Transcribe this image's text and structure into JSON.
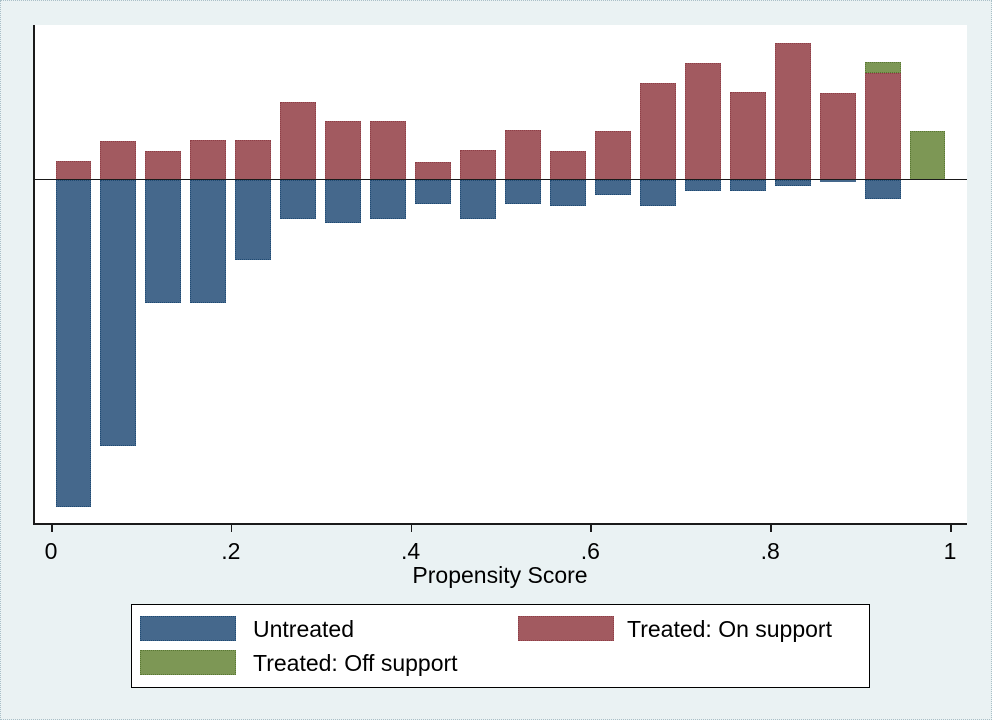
{
  "figure": {
    "background_color": "#EAF2F3",
    "plot_background_color": "#FFFFFF",
    "axis_color": "#1A1A1A"
  },
  "x_axis": {
    "title": "Propensity Score",
    "tick_values": [
      0,
      0.2,
      0.4,
      0.6,
      0.8,
      1
    ],
    "tick_labels": [
      "0",
      ".2",
      ".4",
      ".6",
      ".8",
      "1"
    ]
  },
  "legend": {
    "entries": [
      {
        "label": "Untreated",
        "fill": "#45688C",
        "border": "#1E4A73"
      },
      {
        "label": "Treated: On support",
        "fill": "#A25A60",
        "border": "#8E3E46"
      },
      {
        "label": "Treated: Off support",
        "fill": "#7D9755",
        "border": "#587732"
      }
    ]
  },
  "chart_data": {
    "type": "bar",
    "subtype": "propensity-score overlap histogram (treated plotted upward, untreated plotted downward from a common zero line)",
    "title": "",
    "xlabel": "Propensity Score",
    "ylabel": "",
    "x_range": [
      0,
      1
    ],
    "bin_width": 0.05,
    "grid": false,
    "legend_position": "bottom",
    "y_axis_note": "y axis is unlabeled in the source graph; bar magnitudes below are relative heights measured in screen pixels (zero line = 0)",
    "series": [
      {
        "id": "treated_on",
        "name": "Treated: On support",
        "direction": "up",
        "fill": "#A25A60",
        "border": "#8E3E46"
      },
      {
        "id": "treated_off",
        "name": "Treated: Off support",
        "direction": "up",
        "fill": "#7D9755",
        "border": "#587732"
      },
      {
        "id": "untreated",
        "name": "Untreated",
        "direction": "down",
        "fill": "#45688C",
        "border": "#1E4A73"
      }
    ],
    "bins": [
      {
        "x0": 0.0,
        "x1": 0.05,
        "treated_on": 19,
        "treated_off": 0,
        "untreated": 327
      },
      {
        "x0": 0.05,
        "x1": 0.1,
        "treated_on": 39,
        "treated_off": 0,
        "untreated": 266
      },
      {
        "x0": 0.1,
        "x1": 0.15,
        "treated_on": 29,
        "treated_off": 0,
        "untreated": 123
      },
      {
        "x0": 0.15,
        "x1": 0.2,
        "treated_on": 39.5,
        "treated_off": 0,
        "untreated": 123
      },
      {
        "x0": 0.2,
        "x1": 0.25,
        "treated_on": 39.5,
        "treated_off": 0,
        "untreated": 80
      },
      {
        "x0": 0.25,
        "x1": 0.3,
        "treated_on": 78,
        "treated_off": 0,
        "untreated": 39
      },
      {
        "x0": 0.3,
        "x1": 0.35,
        "treated_on": 58.5,
        "treated_off": 0,
        "untreated": 43.5
      },
      {
        "x0": 0.35,
        "x1": 0.4,
        "treated_on": 59,
        "treated_off": 0,
        "untreated": 39
      },
      {
        "x0": 0.4,
        "x1": 0.45,
        "treated_on": 18,
        "treated_off": 0,
        "untreated": 24
      },
      {
        "x0": 0.45,
        "x1": 0.5,
        "treated_on": 30,
        "treated_off": 0,
        "untreated": 39
      },
      {
        "x0": 0.5,
        "x1": 0.55,
        "treated_on": 50,
        "treated_off": 0,
        "untreated": 24.5
      },
      {
        "x0": 0.55,
        "x1": 0.6,
        "treated_on": 29,
        "treated_off": 0,
        "untreated": 26.5
      },
      {
        "x0": 0.6,
        "x1": 0.65,
        "treated_on": 49,
        "treated_off": 0,
        "untreated": 15
      },
      {
        "x0": 0.65,
        "x1": 0.7,
        "treated_on": 97,
        "treated_off": 0,
        "untreated": 26.5
      },
      {
        "x0": 0.7,
        "x1": 0.75,
        "treated_on": 117,
        "treated_off": 0,
        "untreated": 11
      },
      {
        "x0": 0.75,
        "x1": 0.8,
        "treated_on": 88,
        "treated_off": 0,
        "untreated": 11
      },
      {
        "x0": 0.8,
        "x1": 0.85,
        "treated_on": 137,
        "treated_off": 0,
        "untreated": 6
      },
      {
        "x0": 0.85,
        "x1": 0.9,
        "treated_on": 87,
        "treated_off": 0,
        "untreated": 2
      },
      {
        "x0": 0.9,
        "x1": 0.95,
        "treated_on": 107,
        "treated_off": 11,
        "untreated": 19
      },
      {
        "x0": 0.95,
        "x1": 1.0,
        "treated_on": 0,
        "treated_off": 49,
        "untreated": 0
      }
    ]
  }
}
